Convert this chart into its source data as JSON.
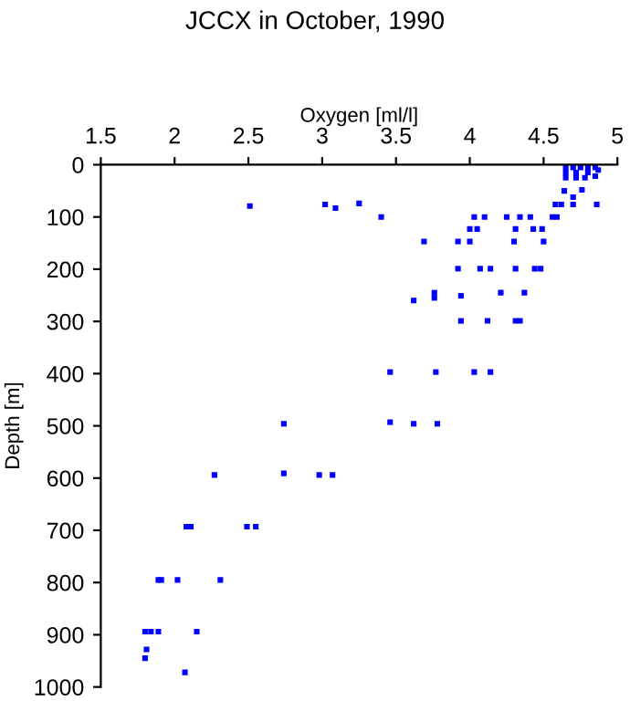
{
  "chart_data": {
    "type": "scatter",
    "title": "JCCX in October, 1990",
    "xlabel": "Oxygen [ml/l]",
    "ylabel": "Depth [m]",
    "xlim": [
      1.5,
      5
    ],
    "xticks": [
      1.5,
      2,
      2.5,
      3,
      3.5,
      4,
      4.5,
      5
    ],
    "ylim": [
      1000,
      0
    ],
    "yticks": [
      0,
      100,
      200,
      300,
      400,
      500,
      600,
      700,
      800,
      900,
      1000
    ],
    "grid": false,
    "marker": "square",
    "series": [
      {
        "color": "#0000ff",
        "x": [
          4.65,
          4.7,
          4.75,
          4.8,
          4.85,
          4.65,
          4.72,
          4.8,
          4.87,
          4.65,
          4.72,
          4.78,
          4.85,
          4.64,
          4.7,
          4.76,
          2.51,
          3.02,
          3.09,
          3.25,
          3.4,
          4.58,
          4.62,
          4.7,
          4.86,
          4.03,
          4.1,
          4.25,
          4.34,
          4.41,
          4.56,
          4.59,
          4.0,
          4.05,
          4.31,
          4.43,
          4.49,
          3.69,
          3.92,
          4.0,
          4.3,
          4.5,
          3.92,
          4.07,
          4.14,
          4.31,
          4.44,
          4.48,
          3.76,
          4.21,
          4.37,
          3.62,
          3.76,
          3.94,
          3.94,
          4.12,
          4.31,
          4.34,
          3.46,
          3.77,
          4.03,
          4.14,
          2.74,
          3.46,
          3.62,
          3.78,
          2.27,
          2.74,
          2.98,
          3.07,
          2.08,
          2.11,
          2.49,
          2.55,
          1.89,
          1.91,
          2.02,
          2.31,
          1.8,
          1.84,
          1.89,
          2.15,
          1.81,
          1.8,
          2.07
        ],
        "values": [
          5,
          5,
          5,
          5,
          5,
          15,
          15,
          15,
          10,
          25,
          25,
          25,
          22,
          50,
          62,
          48,
          79,
          76,
          83,
          74,
          100,
          76,
          76,
          76,
          76,
          100,
          100,
          100,
          100,
          100,
          100,
          100,
          123,
          123,
          123,
          123,
          123,
          147,
          147,
          147,
          147,
          147,
          199,
          199,
          199,
          199,
          199,
          199,
          245,
          245,
          245,
          260,
          255,
          251,
          299,
          299,
          299,
          299,
          397,
          397,
          397,
          397,
          496,
          493,
          496,
          496,
          594,
          591,
          594,
          594,
          693,
          693,
          693,
          693,
          795,
          795,
          795,
          795,
          894,
          894,
          894,
          894,
          928,
          945,
          972
        ]
      }
    ]
  }
}
